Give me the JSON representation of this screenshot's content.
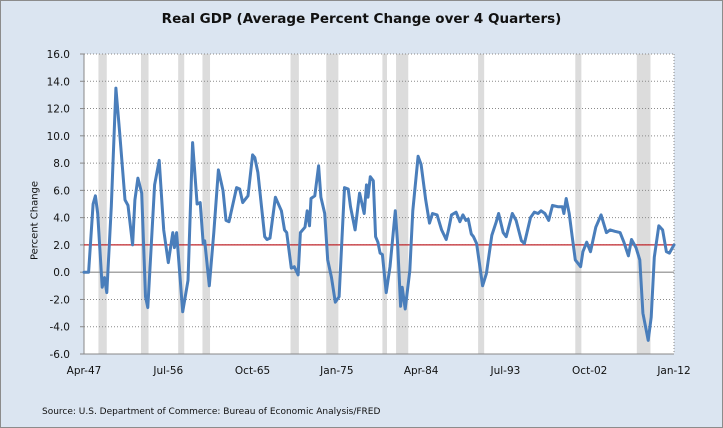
{
  "chart_data": {
    "type": "line",
    "title": "Real GDP (Average Percent Change over 4 Quarters)",
    "xlabel": "",
    "ylabel": "Percent Change",
    "source": "Source: U.S. Department of Commerce: Bureau of Economic Analysis/FRED",
    "ylim": [
      -6.0,
      16.0
    ],
    "xlim": [
      "1947-04",
      "2012-01"
    ],
    "yticks": [
      "16.0",
      "14.0",
      "12.0",
      "10.0",
      "8.0",
      "6.0",
      "4.0",
      "2.0",
      "0.0",
      "-2.0",
      "-4.0",
      "-6.0"
    ],
    "xticks": [
      "Apr-47",
      "Jul-56",
      "Oct-65",
      "Jan-75",
      "Apr-84",
      "Jul-93",
      "Oct-02",
      "Jan-12"
    ],
    "grid": "horizontal dotted",
    "legend": "none",
    "reference_line": {
      "value": 2.0,
      "color": "#c0272d"
    },
    "line_color": "#4a7ebb",
    "recession_color": "#dcdcdc",
    "recessions": [
      [
        "1948-11",
        "1949-10"
      ],
      [
        "1953-07",
        "1954-05"
      ],
      [
        "1957-08",
        "1958-04"
      ],
      [
        "1960-04",
        "1961-02"
      ],
      [
        "1969-12",
        "1970-11"
      ],
      [
        "1973-11",
        "1975-03"
      ],
      [
        "1980-01",
        "1980-07"
      ],
      [
        "1981-07",
        "1982-11"
      ],
      [
        "1990-07",
        "1991-03"
      ],
      [
        "2001-03",
        "2001-11"
      ],
      [
        "2007-12",
        "2009-06"
      ]
    ],
    "series": [
      {
        "x": [
          "1947-04",
          "1947-10",
          "1948-04",
          "1948-07",
          "1948-10",
          "1949-04",
          "1949-07",
          "1949-10",
          "1950-04",
          "1950-10",
          "1951-03",
          "1951-10",
          "1952-02",
          "1952-08",
          "1952-11",
          "1953-03",
          "1953-08",
          "1954-01",
          "1954-04",
          "1955-01",
          "1955-07",
          "1956-01",
          "1956-07",
          "1957-01",
          "1957-03",
          "1957-06",
          "1958-02",
          "1958-09",
          "1959-03",
          "1959-09",
          "1960-01",
          "1960-05",
          "1960-07",
          "1961-01",
          "1961-07",
          "1962-01",
          "1962-07",
          "1962-11",
          "1963-03",
          "1964-01",
          "1964-05",
          "1964-09",
          "1965-04",
          "1965-10",
          "1966-01",
          "1966-05",
          "1967-02",
          "1967-05",
          "1967-09",
          "1968-04",
          "1968-12",
          "1969-04",
          "1969-07",
          "1970-01",
          "1970-05",
          "1970-10",
          "1971-01",
          "1971-07",
          "1971-10",
          "1972-01",
          "1972-03",
          "1972-08",
          "1973-01",
          "1973-04",
          "1973-09",
          "1974-01",
          "1974-06",
          "1974-11",
          "1975-04",
          "1975-11",
          "1976-04",
          "1976-07",
          "1977-01",
          "1977-07",
          "1978-01",
          "1978-04",
          "1978-06",
          "1978-09",
          "1979-01",
          "1979-04",
          "1979-07",
          "1979-10",
          "1980-01",
          "1980-06",
          "1980-11",
          "1981-06",
          "1981-09",
          "1982-01",
          "1982-03",
          "1982-07",
          "1983-01",
          "1983-05",
          "1983-12",
          "1984-04",
          "1984-10",
          "1985-03",
          "1985-07",
          "1986-01",
          "1986-07",
          "1987-01",
          "1987-04",
          "1987-08",
          "1988-02",
          "1988-07",
          "1988-11",
          "1989-03",
          "1989-06",
          "1989-10",
          "1990-01",
          "1990-05",
          "1991-01",
          "1991-06",
          "1992-01",
          "1992-07",
          "1992-10",
          "1993-04",
          "1993-08",
          "1994-04",
          "1994-09",
          "1995-04",
          "1995-08",
          "1996-04",
          "1996-09",
          "1997-02",
          "1997-06",
          "1997-11",
          "1998-04",
          "1998-09",
          "1999-04",
          "1999-10",
          "1999-12",
          "2000-03",
          "2000-07",
          "2000-11",
          "2001-03",
          "2001-10",
          "2002-01",
          "2002-06",
          "2002-11",
          "2003-06",
          "2004-01",
          "2004-08",
          "2005-01",
          "2005-07",
          "2006-02",
          "2006-07",
          "2007-01",
          "2007-05",
          "2007-11",
          "2008-04",
          "2008-08",
          "2009-03",
          "2009-07",
          "2009-11",
          "2010-05",
          "2010-10",
          "2011-03",
          "2011-07",
          "2012-01"
        ],
        "y": [
          0.0,
          0.0,
          5.0,
          5.6,
          4.3,
          -1.1,
          -0.4,
          -1.5,
          4.8,
          13.5,
          10.2,
          5.3,
          4.9,
          2.0,
          5.3,
          6.9,
          5.8,
          -1.8,
          -2.6,
          6.4,
          8.2,
          3.1,
          0.7,
          2.9,
          1.8,
          2.9,
          -2.9,
          -0.6,
          9.5,
          5.0,
          5.1,
          2.1,
          2.3,
          -1.0,
          2.9,
          7.5,
          6.0,
          3.8,
          3.7,
          6.2,
          6.1,
          5.1,
          5.6,
          8.6,
          8.4,
          7.3,
          2.6,
          2.4,
          2.5,
          5.5,
          4.5,
          3.1,
          2.9,
          0.3,
          0.4,
          -0.2,
          2.9,
          3.3,
          4.5,
          3.4,
          5.4,
          5.6,
          7.8,
          5.5,
          4.3,
          0.9,
          -0.4,
          -2.2,
          -1.8,
          6.2,
          6.1,
          4.8,
          3.1,
          5.8,
          4.3,
          6.4,
          5.5,
          7.0,
          6.7,
          2.6,
          2.2,
          1.4,
          1.3,
          -1.5,
          0.4,
          4.5,
          2.1,
          -2.5,
          -1.1,
          -2.7,
          0.1,
          4.5,
          8.5,
          7.9,
          5.3,
          3.6,
          4.3,
          4.2,
          3.1,
          2.4,
          3.1,
          4.2,
          4.4,
          3.7,
          4.2,
          3.8,
          3.9,
          2.8,
          2.6,
          2.1,
          -1.0,
          -0.1,
          2.7,
          3.7,
          4.3,
          2.9,
          2.6,
          4.3,
          3.8,
          2.3,
          2.1,
          4.0,
          4.4,
          4.3,
          4.5,
          4.3,
          3.8,
          4.9,
          4.8,
          4.8,
          4.3,
          5.4,
          4.3,
          2.6,
          0.9,
          0.4,
          1.5,
          2.2,
          1.5,
          3.3,
          4.2,
          2.9,
          3.1,
          3.0,
          2.9,
          2.2,
          1.2,
          2.4,
          1.8,
          0.9,
          -3.0,
          -5.0,
          -3.3,
          1.1,
          3.4,
          3.1,
          1.5,
          1.4,
          2.0
        ]
      }
    ]
  }
}
